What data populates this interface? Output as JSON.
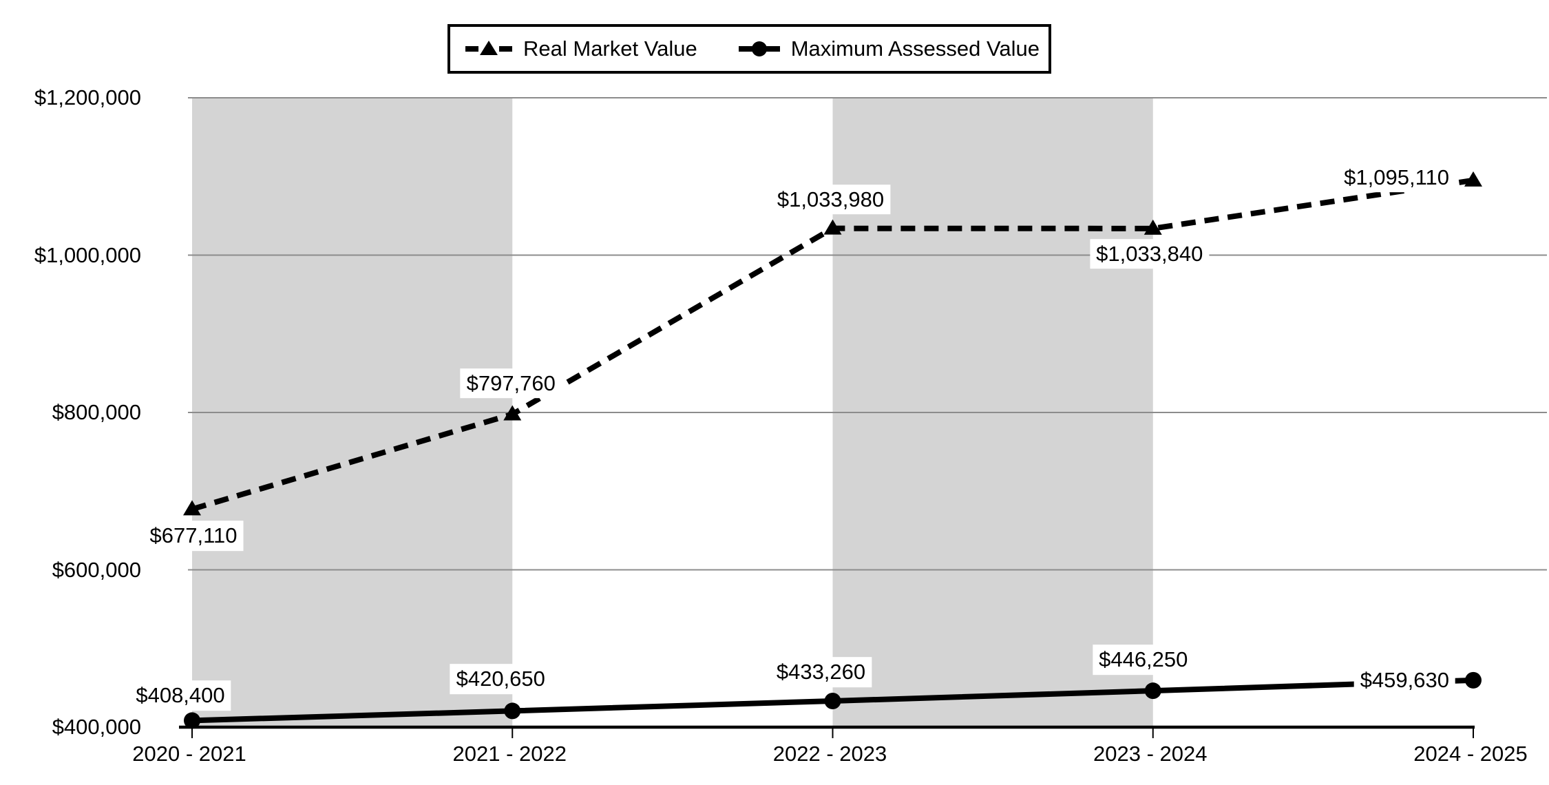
{
  "chart_data": {
    "type": "line",
    "categories": [
      "2020 - 2021",
      "2021 - 2022",
      "2022 - 2023",
      "2023 - 2024",
      "2024 - 2025"
    ],
    "series": [
      {
        "name": "Real Market Value",
        "line_style": "dashed",
        "marker": "triangle",
        "values": [
          677110,
          797760,
          1033980,
          1033840,
          1095110
        ],
        "point_labels": [
          "$677,110",
          "$797,760",
          "$1,033,980",
          "$1,033,840",
          "$1,095,110"
        ]
      },
      {
        "name": "Maximum Assessed Value",
        "line_style": "solid",
        "marker": "circle",
        "values": [
          408400,
          420650,
          433260,
          446250,
          459630
        ],
        "point_labels": [
          "$408,400",
          "$420,650",
          "$433,260",
          "$446,250",
          "$459,630"
        ]
      }
    ],
    "y_axis": {
      "min": 400000,
      "max": 1200000,
      "tick_interval": 200000,
      "tick_labels": [
        "$400,000",
        "$600,000",
        "$800,000",
        "$1,000,000",
        "$1,200,000"
      ]
    },
    "grid": "horizontal",
    "legend_position": "top-center",
    "background_bands": {
      "shaded_category_columns": [
        0,
        2
      ]
    }
  },
  "colors": {
    "series": "#000000",
    "band": "#d4d4d4",
    "gridline": "#8c8c8c",
    "axis": "#000000",
    "label_background": "#ffffff",
    "legend_border": "#000000"
  }
}
